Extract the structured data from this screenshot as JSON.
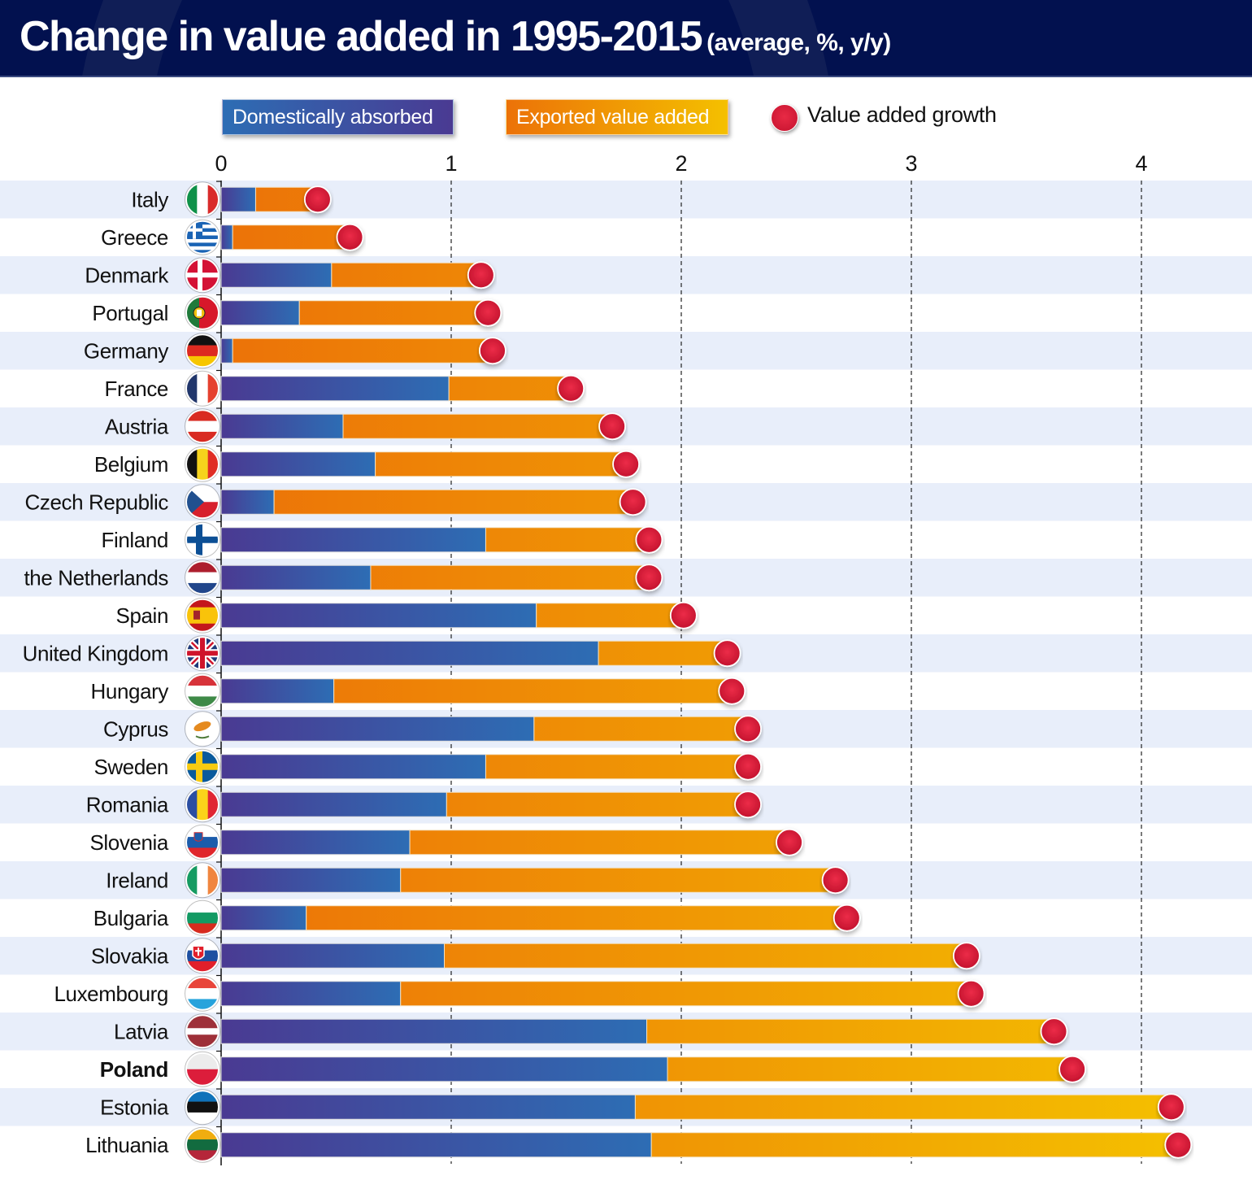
{
  "header": {
    "title": "Change in value added in 1995-2015",
    "subtitle": "(average, %, y/y)"
  },
  "legend": {
    "domestic": "Domestically absorbed",
    "export": "Exported value added",
    "growth": "Value added growth"
  },
  "colors": {
    "domestic_start": "#4a3a92",
    "domestic_end": "#2d6db4",
    "export_start": "#ec7208",
    "export_end": "#f4c000",
    "dot": "#d91c3a",
    "band": "#e8eefa",
    "header_bg": "#02114f"
  },
  "chart_data": {
    "type": "bar",
    "orientation": "horizontal-stacked",
    "title": "Change in value added in 1995-2015",
    "subtitle": "(average, %, y/y)",
    "xlabel": "",
    "ylabel": "",
    "xlim": [
      0,
      4.2
    ],
    "xticks": [
      0,
      1,
      2,
      3,
      4
    ],
    "grid": "vertical dashed at ticks",
    "legend_position": "top",
    "categories": [
      "Italy",
      "Greece",
      "Denmark",
      "Portugal",
      "Germany",
      "France",
      "Austria",
      "Belgium",
      "Czech Republic",
      "Finland",
      "the Netherlands",
      "Spain",
      "United Kingdom",
      "Hungary",
      "Cyprus",
      "Sweden",
      "Romania",
      "Slovenia",
      "Ireland",
      "Bulgaria",
      "Slovakia",
      "Luxembourg",
      "Latvia",
      "Poland",
      "Estonia",
      "Lithuania"
    ],
    "highlighted": "Poland",
    "flags": [
      "italy-flag",
      "greece-flag",
      "denmark-flag",
      "portugal-flag",
      "germany-flag",
      "france-flag",
      "austria-flag",
      "belgium-flag",
      "czech-republic-flag",
      "finland-flag",
      "netherlands-flag",
      "spain-flag",
      "united-kingdom-flag",
      "hungary-flag",
      "cyprus-flag",
      "sweden-flag",
      "romania-flag",
      "slovenia-flag",
      "ireland-flag",
      "bulgaria-flag",
      "slovakia-flag",
      "luxembourg-flag",
      "latvia-flag",
      "poland-flag",
      "estonia-flag",
      "lithuania-flag"
    ],
    "series": [
      {
        "name": "Domestically absorbed",
        "values": [
          0.15,
          0.05,
          0.48,
          0.34,
          0.05,
          0.99,
          0.53,
          0.67,
          0.23,
          1.15,
          0.65,
          1.37,
          1.64,
          0.49,
          1.36,
          1.15,
          0.98,
          0.82,
          0.78,
          0.37,
          0.97,
          0.78,
          1.85,
          1.94,
          1.8,
          1.87
        ]
      },
      {
        "name": "Exported value added",
        "values": [
          0.27,
          0.51,
          0.65,
          0.82,
          1.13,
          0.53,
          1.17,
          1.09,
          1.56,
          0.71,
          1.21,
          0.64,
          0.56,
          1.73,
          0.93,
          1.14,
          1.31,
          1.65,
          1.89,
          2.35,
          2.27,
          2.48,
          1.77,
          1.76,
          2.33,
          2.29
        ]
      },
      {
        "name": "Value added growth",
        "type": "dot",
        "values": [
          0.42,
          0.56,
          1.13,
          1.16,
          1.18,
          1.52,
          1.7,
          1.76,
          1.79,
          1.86,
          1.86,
          2.01,
          2.2,
          2.22,
          2.29,
          2.29,
          2.29,
          2.47,
          2.67,
          2.72,
          3.24,
          3.26,
          3.62,
          3.7,
          4.13,
          4.16
        ]
      }
    ]
  }
}
